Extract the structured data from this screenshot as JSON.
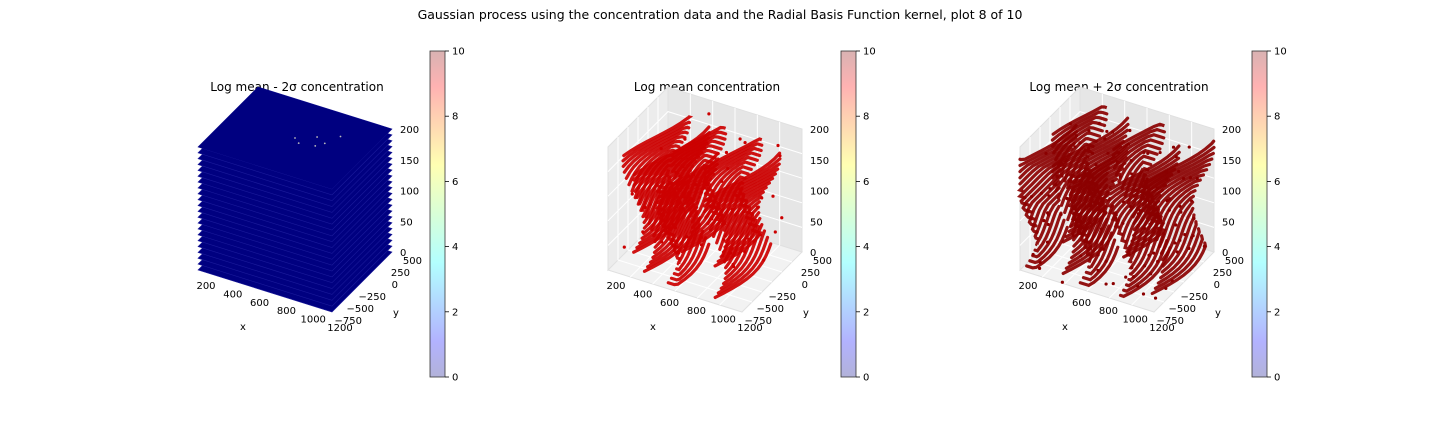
{
  "figure": {
    "suptitle": "Gaussian process using the  concentration data and the Radial Basis Function kernel, plot 8 of 10"
  },
  "chart_data": [
    {
      "type": "scatter",
      "title": "Log mean - 2σ concentration",
      "xlabel": "x",
      "ylabel": "y",
      "zlabel": "",
      "x_ticks": [
        "200",
        "400",
        "600",
        "800",
        "1000",
        "1200"
      ],
      "y_ticks": [
        "−750",
        "−500",
        "−250",
        "0",
        "250",
        "500"
      ],
      "z_ticks": [
        "0",
        "50",
        "100",
        "150",
        "200"
      ],
      "colorbar": {
        "ticks": [
          "0",
          "2",
          "4",
          "6",
          "8",
          "10"
        ],
        "range": [
          0,
          10
        ],
        "colormap": "jet",
        "alpha": 0.3
      },
      "point_value": 0,
      "point_color": "#000080",
      "shape": "full-cube",
      "pane_visible": false
    },
    {
      "type": "scatter",
      "title": "Log mean concentration",
      "xlabel": "x",
      "ylabel": "y",
      "zlabel": "",
      "x_ticks": [
        "200",
        "400",
        "600",
        "800",
        "1000",
        "1200"
      ],
      "y_ticks": [
        "−750",
        "−500",
        "−250",
        "0",
        "250",
        "500"
      ],
      "z_ticks": [
        "0",
        "50",
        "100",
        "150",
        "200"
      ],
      "colorbar": {
        "ticks": [
          "0",
          "2",
          "4",
          "6",
          "8",
          "10"
        ],
        "range": [
          0,
          10
        ],
        "colormap": "jet",
        "alpha": 0.3
      },
      "point_value": 10,
      "point_color": "#cc0000",
      "shape": "plume",
      "pane_visible": true
    },
    {
      "type": "scatter",
      "title": "Log mean + 2σ concentration",
      "xlabel": "x",
      "ylabel": "y",
      "zlabel": "",
      "x_ticks": [
        "200",
        "400",
        "600",
        "800",
        "1000",
        "1200"
      ],
      "y_ticks": [
        "−750",
        "−500",
        "−250",
        "0",
        "250",
        "500"
      ],
      "z_ticks": [
        "0",
        "50",
        "100",
        "150",
        "200"
      ],
      "colorbar": {
        "ticks": [
          "0",
          "2",
          "4",
          "6",
          "8",
          "10"
        ],
        "range": [
          0,
          10
        ],
        "colormap": "jet",
        "alpha": 0.3
      },
      "point_value": 10,
      "point_color": "#8b0000",
      "shape": "plume-wide",
      "pane_visible": true
    }
  ]
}
